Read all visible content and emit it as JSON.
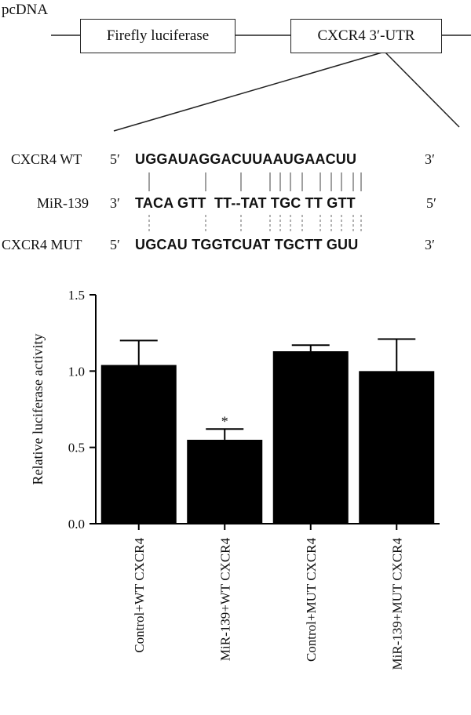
{
  "construct": {
    "vector_label": "pcDNA",
    "box1": "Firefly luciferase",
    "box2": "CXCR4 3′-UTR"
  },
  "alignment": {
    "rows": [
      {
        "name": "CXCR4 WT",
        "end5": "5′",
        "seq": "UGGAUAGGACUUAAUGAACUU",
        "end3": "3′"
      },
      {
        "name": "MiR-139",
        "end5": "3′",
        "seq": "TACA GTT  TT--TAT TGC TT GTT",
        "end3": "5′"
      },
      {
        "name": "CXCR4 MUT",
        "end5": "5′",
        "seq": "UGCAU TGGTCUAT TGCTT GUU",
        "end3": "3′"
      }
    ]
  },
  "chart_data": {
    "type": "bar",
    "categories": [
      "Control+WT CXCR4",
      "MiR-139+WT CXCR4",
      "Control+MUT CXCR4",
      "MiR-139+MUT CXCR4"
    ],
    "values": [
      1.04,
      0.55,
      1.13,
      1.0
    ],
    "errors": [
      0.16,
      0.07,
      0.04,
      0.21
    ],
    "significance": [
      "",
      "*",
      "",
      ""
    ],
    "ylabel": "Relative luciferase activity",
    "ylim": [
      0,
      1.5
    ],
    "yticks": [
      "0.0",
      "0.5",
      "1.0",
      "1.5"
    ],
    "bar_color": "#000000",
    "grid": false
  }
}
